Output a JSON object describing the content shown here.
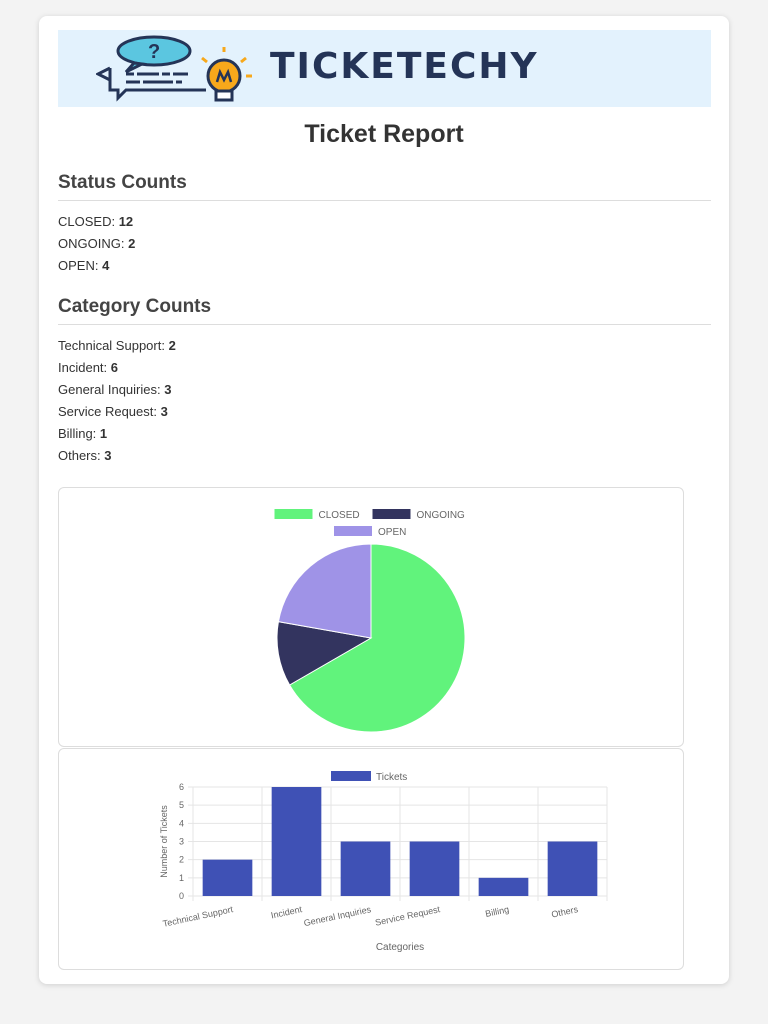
{
  "brand": {
    "name": "TICKETECHY"
  },
  "page": {
    "title": "Ticket Report"
  },
  "status": {
    "heading": "Status Counts",
    "items": [
      {
        "label": "CLOSED:",
        "count": "12"
      },
      {
        "label": "ONGOING:",
        "count": "2"
      },
      {
        "label": "OPEN:",
        "count": "4"
      }
    ]
  },
  "category": {
    "heading": "Category Counts",
    "items": [
      {
        "label": "Technical Support:",
        "count": "2"
      },
      {
        "label": "Incident:",
        "count": "6"
      },
      {
        "label": "General Inquiries:",
        "count": "3"
      },
      {
        "label": "Service Request:",
        "count": "3"
      },
      {
        "label": "Billing:",
        "count": "1"
      },
      {
        "label": "Others:",
        "count": "3"
      }
    ]
  },
  "chart_data": [
    {
      "type": "pie",
      "title": "",
      "legend_position": "top",
      "labels": [
        "CLOSED",
        "ONGOING",
        "OPEN"
      ],
      "values": [
        12,
        2,
        4
      ],
      "colors": [
        "#61f37c",
        "#33345f",
        "#9f93e7"
      ]
    },
    {
      "type": "bar",
      "title": "",
      "legend_position": "top",
      "categories": [
        "Technical Support",
        "Incident",
        "General Inquiries",
        "Service Request",
        "Billing",
        "Others"
      ],
      "series": [
        {
          "name": "Tickets",
          "values": [
            2,
            6,
            3,
            3,
            1,
            3
          ]
        }
      ],
      "xlabel": "Categories",
      "ylabel": "Number of Tickets",
      "ylim": [
        0,
        6
      ],
      "yticks": [
        0,
        1,
        2,
        3,
        4,
        5,
        6
      ],
      "grid": true,
      "color": "#3f51b5"
    }
  ]
}
